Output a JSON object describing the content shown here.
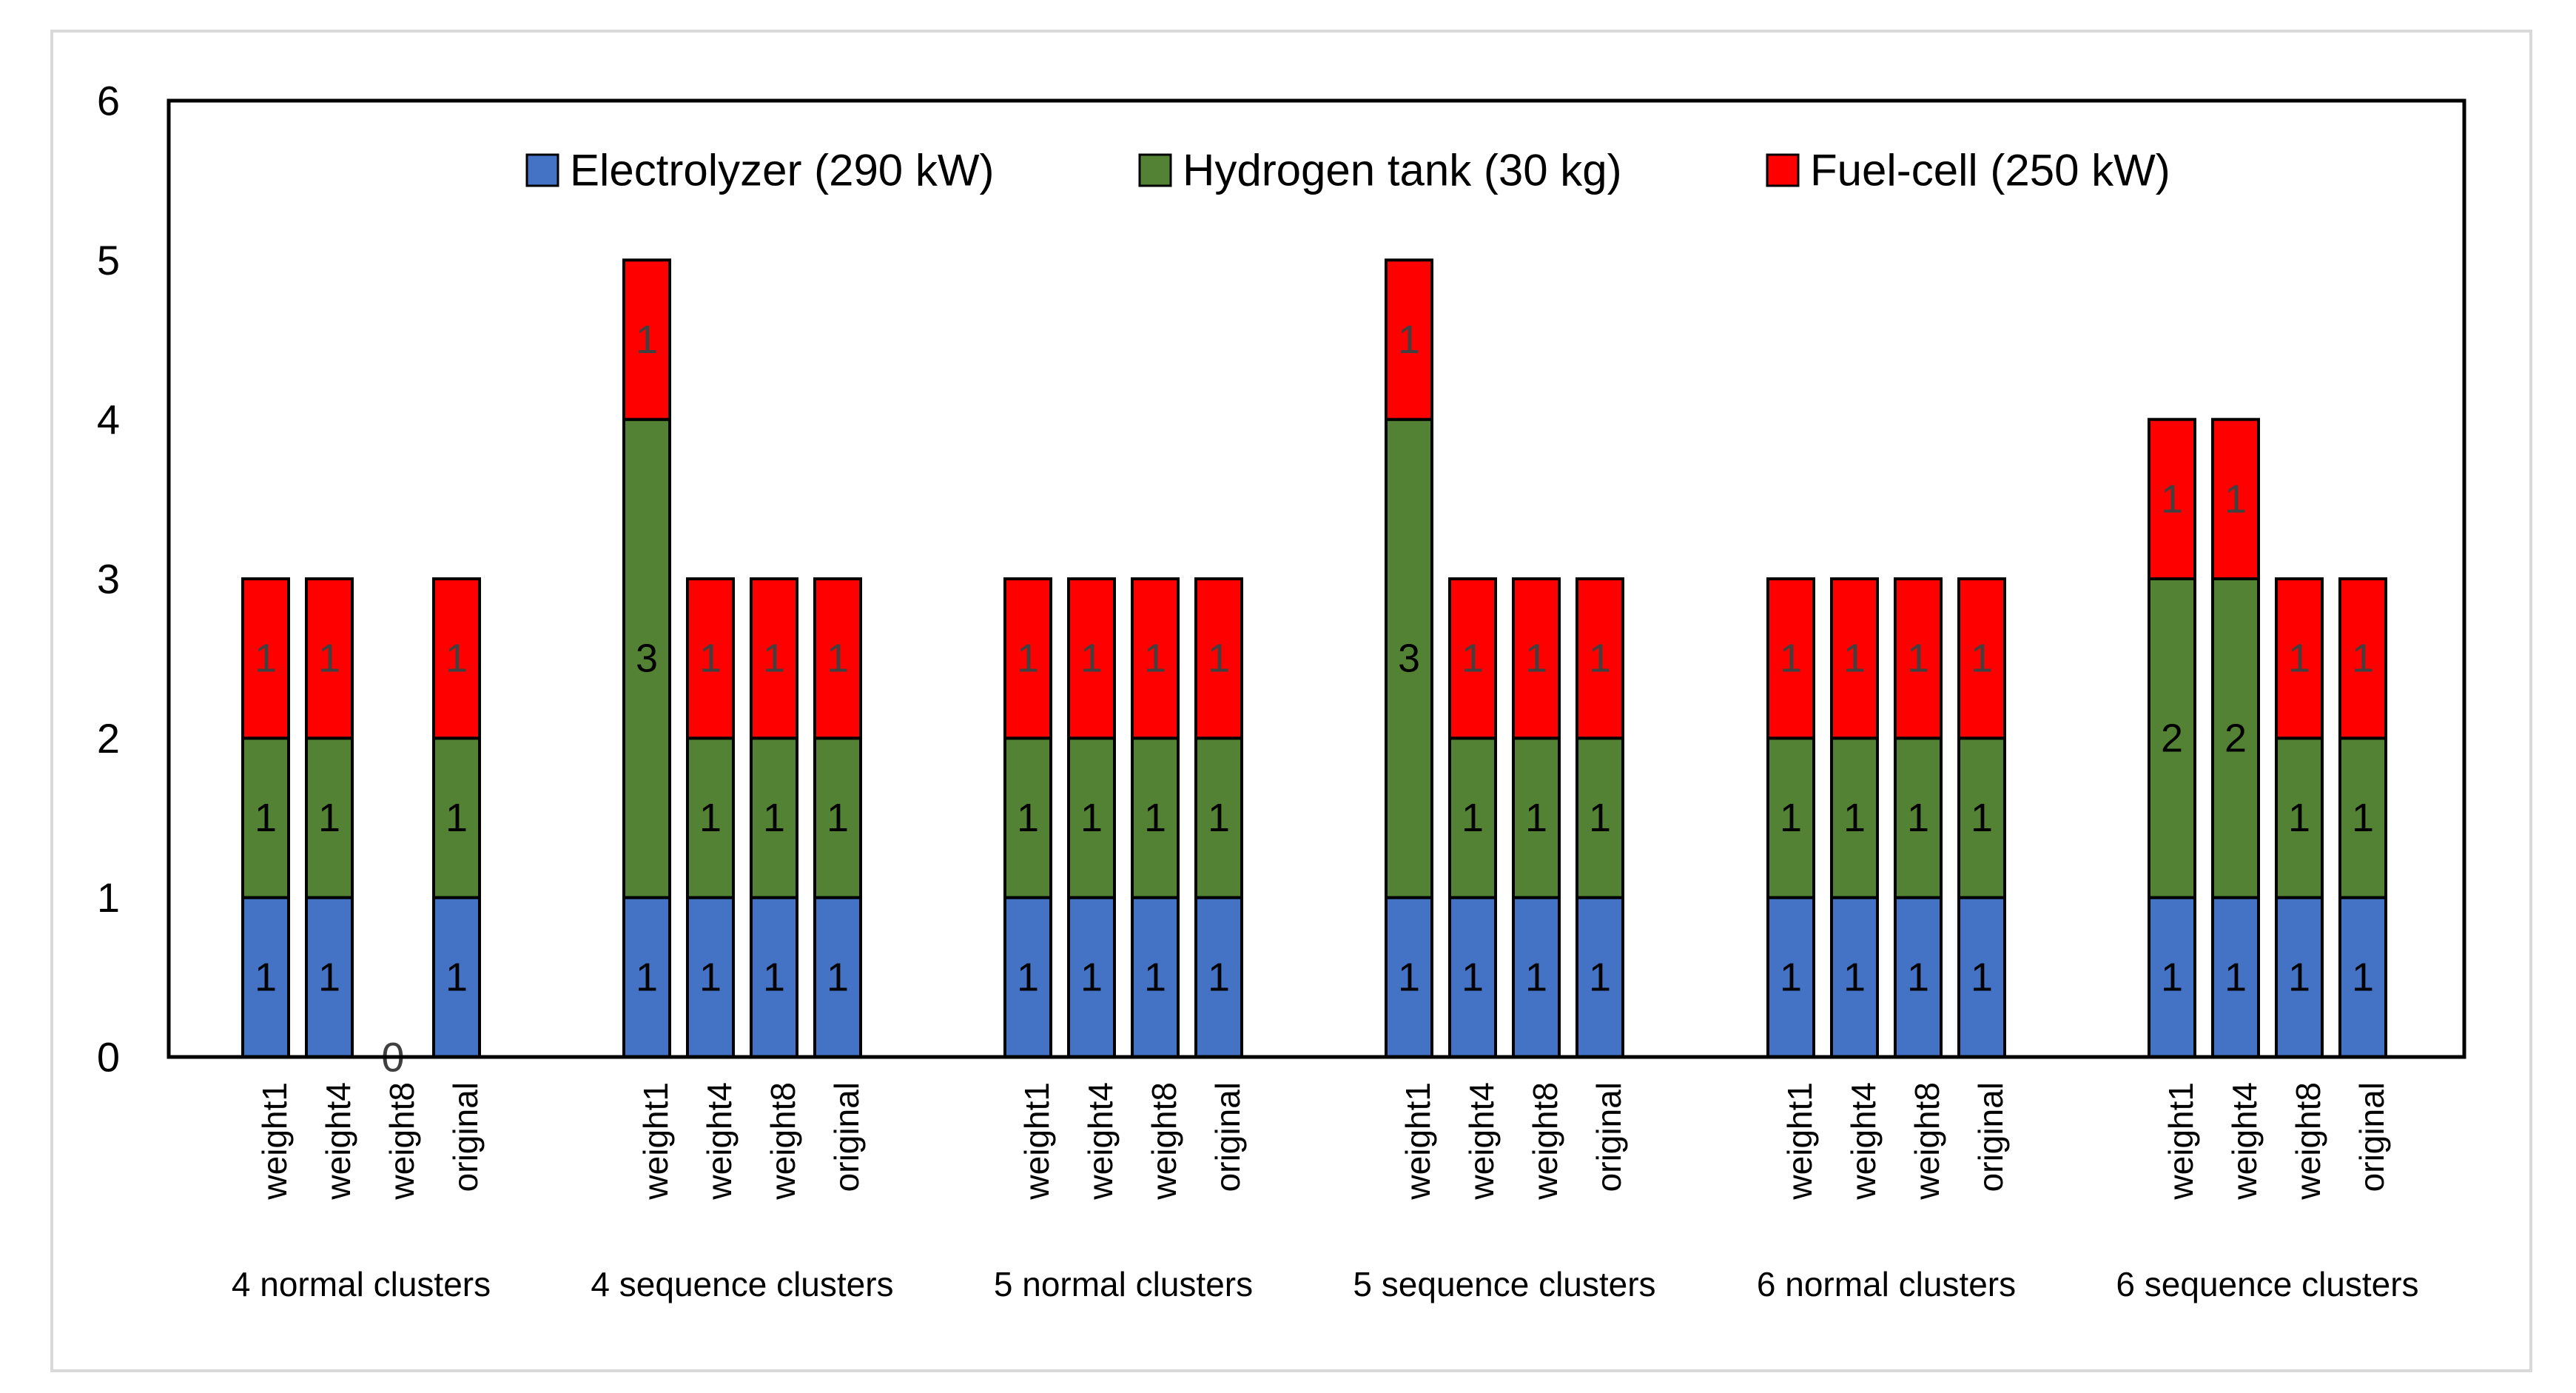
{
  "chart_data": {
    "type": "bar",
    "stacked": true,
    "title": "",
    "xlabel": "",
    "ylabel": "",
    "ylim": [
      0,
      6
    ],
    "yticks": [
      0,
      1,
      2,
      3,
      4,
      5,
      6
    ],
    "grid": false,
    "legend_position": "top-center",
    "colors": {
      "electrolyzer": "#4472c4",
      "hydrogen_tank": "#548235",
      "fuel_cell": "#ff0000",
      "outline": "#000000",
      "frame": "#d9d9d9"
    },
    "groups": [
      {
        "label": "4 normal clusters",
        "categories": [
          "weight1",
          "weight4",
          "weight8",
          "original"
        ]
      },
      {
        "label": "4 sequence clusters",
        "categories": [
          "weight1",
          "weight4",
          "weight8",
          "original"
        ]
      },
      {
        "label": "5 normal clusters",
        "categories": [
          "weight1",
          "weight4",
          "weight8",
          "original"
        ]
      },
      {
        "label": "5 sequence clusters",
        "categories": [
          "weight1",
          "weight4",
          "weight8",
          "original"
        ]
      },
      {
        "label": "6 normal clusters",
        "categories": [
          "weight1",
          "weight4",
          "weight8",
          "original"
        ]
      },
      {
        "label": "6 sequence clusters",
        "categories": [
          "weight1",
          "weight4",
          "weight8",
          "original"
        ]
      }
    ],
    "series": [
      {
        "key": "electrolyzer",
        "name": "Electrolyzer (290 kW)",
        "values": [
          1,
          1,
          0,
          1,
          1,
          1,
          1,
          1,
          1,
          1,
          1,
          1,
          1,
          1,
          1,
          1,
          1,
          1,
          1,
          1,
          1,
          1,
          1,
          1
        ]
      },
      {
        "key": "hydrogen_tank",
        "name": "Hydrogen tank (30 kg)",
        "values": [
          1,
          1,
          0,
          1,
          3,
          1,
          1,
          1,
          1,
          1,
          1,
          1,
          3,
          1,
          1,
          1,
          1,
          1,
          1,
          1,
          2,
          2,
          1,
          1
        ]
      },
      {
        "key": "fuel_cell",
        "name": "Fuel-cell (250 kW)",
        "values": [
          1,
          1,
          0,
          1,
          1,
          1,
          1,
          1,
          1,
          1,
          1,
          1,
          1,
          1,
          1,
          1,
          1,
          1,
          1,
          1,
          1,
          1,
          1,
          1
        ]
      }
    ],
    "zero_total_label": "0"
  }
}
